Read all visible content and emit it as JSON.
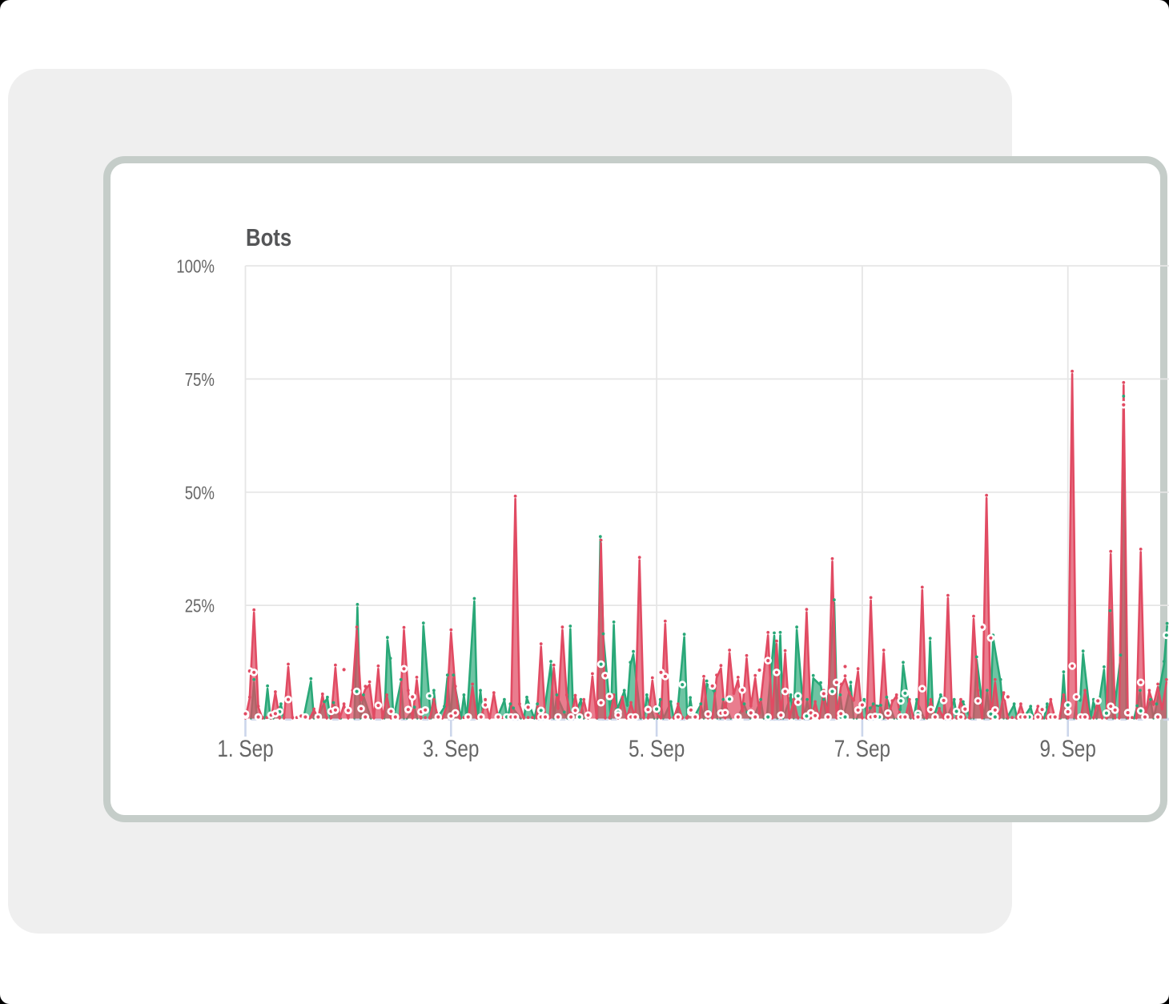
{
  "window": {
    "background": "#ffffff",
    "outside_corner_color": "#000000",
    "corner_radius": 12
  },
  "panel": {
    "background": "#efefef"
  },
  "card": {
    "background": "#ffffff",
    "border_color": "#c5cdc9"
  },
  "chart_data": {
    "type": "area",
    "title": "Bots",
    "xlabel": "",
    "ylabel": "",
    "ylim": [
      0,
      100
    ],
    "grid": true,
    "legend": false,
    "y_tick_labels": [
      "100%",
      "75%",
      "50%",
      "25%"
    ],
    "y_tick_values": [
      100,
      75,
      50,
      25
    ],
    "x_tick_labels": [
      "1. Sep",
      "3. Sep",
      "5. Sep",
      "7. Sep",
      "9. Sep"
    ],
    "x_unit": "hours (points are hourly, starting 1. Sep 00:00)",
    "colors": {
      "red": "#e14b63",
      "green": "#29a878",
      "grid": "#e6e6e6",
      "axis": "#ccd6eb",
      "label": "#666666",
      "title": "#545557"
    },
    "series": [
      {
        "name": "green-area",
        "color_key": "green",
        "marker": "dot",
        "values": [
          0.0,
          0.0,
          8,
          0.0,
          0.0,
          6.6,
          0.0,
          0.0,
          3,
          0.0,
          0.0,
          0.0,
          0.0,
          0.0,
          0.0,
          8.2,
          0.0,
          0.0,
          3.5,
          4.5,
          0.0,
          3.3,
          0.0,
          0.0,
          0.0,
          0,
          24.6,
          0,
          5,
          0.0,
          0.0,
          0.0,
          0.0,
          17.3,
          12.7,
          0.0,
          8,
          0.0,
          0.0,
          2.3,
          0.0,
          0,
          20.5,
          0,
          6,
          0.0,
          2.5,
          9,
          0.0,
          9,
          0.0,
          5,
          0,
          25.9,
          0,
          6,
          0.0,
          0.0,
          0.0,
          0.0,
          4,
          0.0,
          3,
          2.1,
          0.0,
          0.0,
          4.5,
          0.0,
          3,
          0.0,
          0.0,
          12,
          0.0,
          5,
          1.2,
          0.0,
          19.8,
          0.0,
          4,
          0.0,
          0.0,
          0.0,
          0,
          39.6,
          18.1,
          0.0,
          20.7,
          1.9,
          6,
          2.8,
          11.8,
          14.2,
          0.0,
          0.0,
          5,
          0.0,
          0.0,
          4,
          0.0,
          3.5,
          0.0,
          0.0,
          18,
          0.0,
          4.4,
          0.0,
          3,
          0.0,
          7.7,
          5.9,
          0.0,
          0.0,
          4,
          0.0,
          0.0,
          0.0,
          3,
          1.2,
          0.0,
          0.0,
          4,
          0.0,
          0,
          18.3,
          0,
          18.4,
          0.0,
          5,
          0.0,
          19.6,
          0.0,
          4,
          0.0,
          8.9,
          7.3,
          4,
          0,
          25.6,
          0,
          5,
          0.0,
          7.4,
          0.0,
          0.0,
          4,
          0.0,
          2.1,
          3,
          2.7,
          0.0,
          4.5,
          0.0,
          0.0,
          1.8,
          11.8,
          0.0,
          0.0,
          4,
          0.0,
          0,
          17.1,
          0,
          5,
          4.3,
          0.0,
          4,
          0.0,
          0.0,
          3.5,
          0.0,
          0.0,
          13,
          0.0,
          6,
          0.0,
          17.8,
          8,
          0.0,
          0.0,
          3,
          0.0,
          0.0,
          0.0,
          2.5,
          0.0,
          0.0,
          0.0,
          3,
          0.0,
          0.0,
          0,
          9.7,
          0,
          0.0,
          5,
          3.9,
          14.3,
          0.0,
          4,
          0.0,
          10.8,
          0.0,
          23.2,
          0.0,
          13.4,
          70.6,
          0,
          0,
          2.6,
          6,
          0.0,
          4,
          0.0,
          3,
          12,
          20.4
        ]
      },
      {
        "name": "red-area",
        "color_key": "red",
        "marker": "dot",
        "values": [
          0,
          4.5,
          23.4,
          2.5,
          0,
          0.0,
          0.0,
          5.7,
          0.0,
          0.0,
          11.4,
          0,
          0.0,
          0.0,
          0.0,
          0.0,
          1.9,
          0.0,
          5.2,
          0.0,
          0.0,
          11.2,
          0.0,
          3,
          0.0,
          6,
          19.6,
          4,
          6.5,
          7.5,
          0.0,
          11,
          0.0,
          5,
          0.0,
          0.0,
          0.0,
          19.5,
          6,
          0.0,
          8.5,
          0.0,
          0.0,
          0.0,
          4,
          0.0,
          0.0,
          2.8,
          19,
          6.5,
          0.0,
          0.0,
          0.0,
          7,
          0.0,
          0.0,
          4,
          0.0,
          5.5,
          0.0,
          0.0,
          0.0,
          0,
          48.5,
          3,
          0.0,
          0.0,
          0.0,
          0.0,
          15.9,
          0.0,
          0.0,
          11.2,
          2.1,
          19.6,
          5,
          0.0,
          4.9,
          0.0,
          4,
          0.0,
          9.3,
          0,
          38.8,
          0,
          0.0,
          5,
          0.0,
          4.5,
          0.0,
          3.3,
          0,
          35,
          0,
          0.0,
          8.4,
          1.2,
          0.0,
          20.9,
          0.0,
          0.0,
          3,
          0.0,
          0.0,
          2,
          0.0,
          0.0,
          8.7,
          0.0,
          0.0,
          9,
          11.1,
          0.0,
          14.5,
          5.4,
          8.5,
          1.5,
          13.3,
          2.6,
          8.9,
          1.1,
          10,
          18.4,
          0.0,
          16.5,
          0.0,
          14.4,
          0.0,
          4,
          0.0,
          0,
          23.5,
          0,
          3.5,
          0.0,
          6,
          0,
          34.7,
          0,
          7,
          8.8,
          5.5,
          3.9,
          10.4,
          0.0,
          0,
          26.1,
          0,
          0.0,
          14.5,
          0.0,
          3.7,
          5,
          0.0,
          0.0,
          4,
          0.0,
          0,
          28.4,
          0,
          4,
          0.0,
          2.0,
          0,
          26.6,
          0,
          0.0,
          4,
          0.0,
          0.0,
          22,
          6,
          0,
          48.7,
          0,
          8,
          0.0,
          5.5,
          0.0,
          0.0,
          0.0,
          3,
          0.0,
          0.0,
          0.0,
          2.5,
          0.0,
          0.0,
          4,
          0.0,
          0.0,
          5,
          0,
          76.1,
          0,
          0.0,
          6,
          0.0,
          0.0,
          4,
          0.0,
          0,
          36.3,
          0,
          0,
          73.6,
          0,
          0,
          0,
          36.8,
          0,
          6,
          3,
          7,
          2,
          8
        ]
      },
      {
        "name": "green-ring-markers",
        "color_key": "green",
        "marker": "ring",
        "values": [
          0.4,
          null,
          null,
          null,
          null,
          null,
          null,
          null,
          1.5,
          null,
          null,
          null,
          null,
          null,
          null,
          null,
          null,
          0.0,
          null,
          null,
          null,
          null,
          null,
          null,
          null,
          null,
          6,
          null,
          null,
          null,
          null,
          null,
          null,
          null,
          1.6,
          0.0,
          null,
          null,
          null,
          null,
          null,
          null,
          null,
          5,
          null,
          null,
          null,
          null,
          null,
          null,
          null,
          null,
          0.0,
          null,
          null,
          null,
          null,
          null,
          null,
          null,
          null,
          0.0,
          null,
          null,
          null,
          null,
          null,
          null,
          null,
          1.8,
          0.0,
          null,
          null,
          null,
          null,
          null,
          null,
          null,
          0.0,
          null,
          null,
          null,
          null,
          12,
          null,
          null,
          null,
          1.4,
          null,
          null,
          null,
          null,
          null,
          null,
          null,
          null,
          2.1,
          null,
          null,
          null,
          null,
          null,
          7.5,
          null,
          1.4,
          0.0,
          null,
          null,
          null,
          null,
          null,
          null,
          null,
          4.3,
          null,
          null,
          null,
          null,
          null,
          null,
          null,
          null,
          0.0,
          null,
          null,
          null,
          null,
          null,
          null,
          5,
          null,
          0.2,
          null,
          null,
          null,
          null,
          null,
          6,
          null,
          0.0,
          0.0,
          null,
          null,
          null,
          null,
          null,
          null,
          null,
          0.0,
          null,
          null,
          null,
          null,
          3.9,
          5.6,
          null,
          null,
          1.1,
          null,
          null,
          null,
          null,
          null,
          null,
          null,
          null,
          1.6,
          null,
          null,
          null,
          null,
          null,
          null,
          null,
          1.0,
          0.0,
          null,
          null,
          null,
          null,
          null,
          null,
          null,
          0.0,
          null,
          null,
          null,
          null,
          null,
          null,
          null,
          null,
          3,
          null,
          null,
          null,
          null,
          null,
          null,
          null,
          null,
          1.2,
          null,
          null,
          null,
          null,
          null,
          null,
          null,
          1.7,
          0.0,
          null,
          null,
          null,
          null,
          18.4
        ]
      },
      {
        "name": "red-ring-markers",
        "color_key": "red",
        "marker": "ring",
        "values": [
          0.7,
          10.5,
          10.2,
          0.0,
          null,
          null,
          0.4,
          1.1,
          null,
          null,
          4.2,
          null,
          null,
          0.2,
          0.0,
          null,
          null,
          0.0,
          null,
          null,
          1.6,
          1.9,
          null,
          10.8,
          1.8,
          null,
          null,
          2.2,
          0.0,
          null,
          null,
          2.9,
          null,
          null,
          1.6,
          0.0,
          null,
          11,
          2.0,
          4.8,
          null,
          1.5,
          1.9,
          null,
          null,
          0.0,
          null,
          null,
          0.2,
          0.9,
          null,
          null,
          0.0,
          null,
          null,
          0.0,
          3,
          null,
          null,
          0.0,
          null,
          null,
          0.0,
          0.0,
          null,
          null,
          2.5,
          null,
          null,
          0.0,
          0.0,
          null,
          null,
          0.0,
          null,
          null,
          0.0,
          1.8,
          null,
          null,
          0.4,
          null,
          null,
          3.5,
          9.5,
          4.9,
          null,
          0.4,
          null,
          null,
          0.0,
          0.0,
          null,
          null,
          2.0,
          null,
          null,
          10.2,
          9.3,
          null,
          null,
          0.0,
          null,
          null,
          1.9,
          0.0,
          null,
          null,
          1.0,
          7.2,
          null,
          1.2,
          1.3,
          null,
          null,
          0.0,
          6.3,
          null,
          0.9,
          0.0,
          10.7,
          null,
          12.8,
          null,
          10.2,
          0.4,
          6,
          null,
          null,
          3.6,
          null,
          null,
          0.9,
          0.3,
          null,
          5.5,
          0.0,
          null,
          8,
          1.1,
          11.5,
          null,
          null,
          1.9,
          3,
          null,
          0.0,
          0.1,
          null,
          null,
          1.2,
          null,
          null,
          0.0,
          0.0,
          null,
          null,
          0.0,
          6.6,
          null,
          2.0,
          0.0,
          null,
          4,
          0.0,
          null,
          null,
          0.0,
          2.1,
          null,
          null,
          3.9,
          20.2,
          null,
          17.8,
          1.9,
          null,
          null,
          4.8,
          null,
          null,
          0.0,
          0.0,
          null,
          null,
          0.0,
          2,
          null,
          0.0,
          0.0,
          null,
          null,
          1.5,
          11.6,
          4.8,
          0.0,
          0.0,
          null,
          null,
          3.9,
          null,
          null,
          2.7,
          1.9,
          null,
          69.3,
          1.3,
          null,
          null,
          8,
          0.0,
          null,
          null,
          0.0,
          null,
          null
        ]
      }
    ]
  }
}
